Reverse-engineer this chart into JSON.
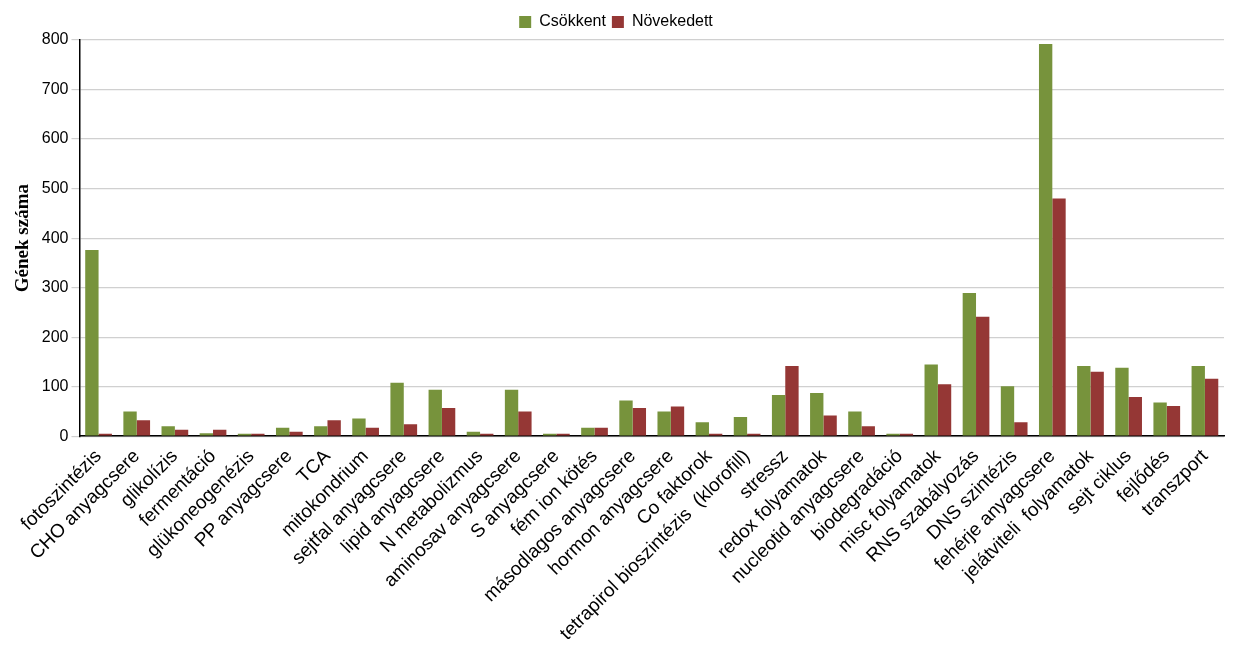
{
  "chart_data": {
    "type": "bar",
    "ylabel": "Gének száma",
    "categories": [
      "fotoszintézis",
      "CHO anyagcsere",
      "glikolízis",
      "fermentáció",
      "glükoneogenézis",
      "PP anyagcsere",
      "TCA",
      "mitokondrium",
      "sejtfal anyagcsere",
      "lipid anyagcsere",
      "N metabolizmus",
      "aminosav anyagcsere",
      "S anyagcsere",
      "fém ion kötés",
      "másodlagos anyagcsere",
      "hormon anyagcsere",
      "Co faktorok",
      "tetrapirol bioszintézis  (klorofill)",
      "stressz",
      "redox folyamatok",
      "nucleotid anyagcsere",
      "biodegradáció",
      "misc folyamatok",
      "RNS szabályozás",
      "DNS szintézis",
      "fehérje anyagcsere",
      "jelátviteli  folyamatok",
      "sejt ciklus",
      "fejlődés",
      "transzport"
    ],
    "series": [
      {
        "name": "Csökkent",
        "color": "#77933c",
        "values": [
          376,
          50,
          20,
          6,
          5,
          17,
          20,
          36,
          108,
          94,
          9,
          94,
          5,
          17,
          72,
          50,
          28,
          39,
          83,
          87,
          50,
          5,
          145,
          289,
          101,
          792,
          142,
          138,
          68,
          142
        ]
      },
      {
        "name": "Növekedett",
        "color": "#953735",
        "values": [
          5,
          32,
          13,
          13,
          5,
          9,
          32,
          17,
          24,
          57,
          5,
          50,
          5,
          17,
          57,
          60,
          5,
          5,
          142,
          42,
          20,
          5,
          105,
          241,
          28,
          480,
          130,
          79,
          61,
          116
        ]
      }
    ],
    "ylim": [
      0,
      800
    ],
    "yticks": [
      0,
      100,
      200,
      300,
      400,
      500,
      600,
      700,
      800
    ],
    "grid": "y",
    "legend": "top"
  }
}
